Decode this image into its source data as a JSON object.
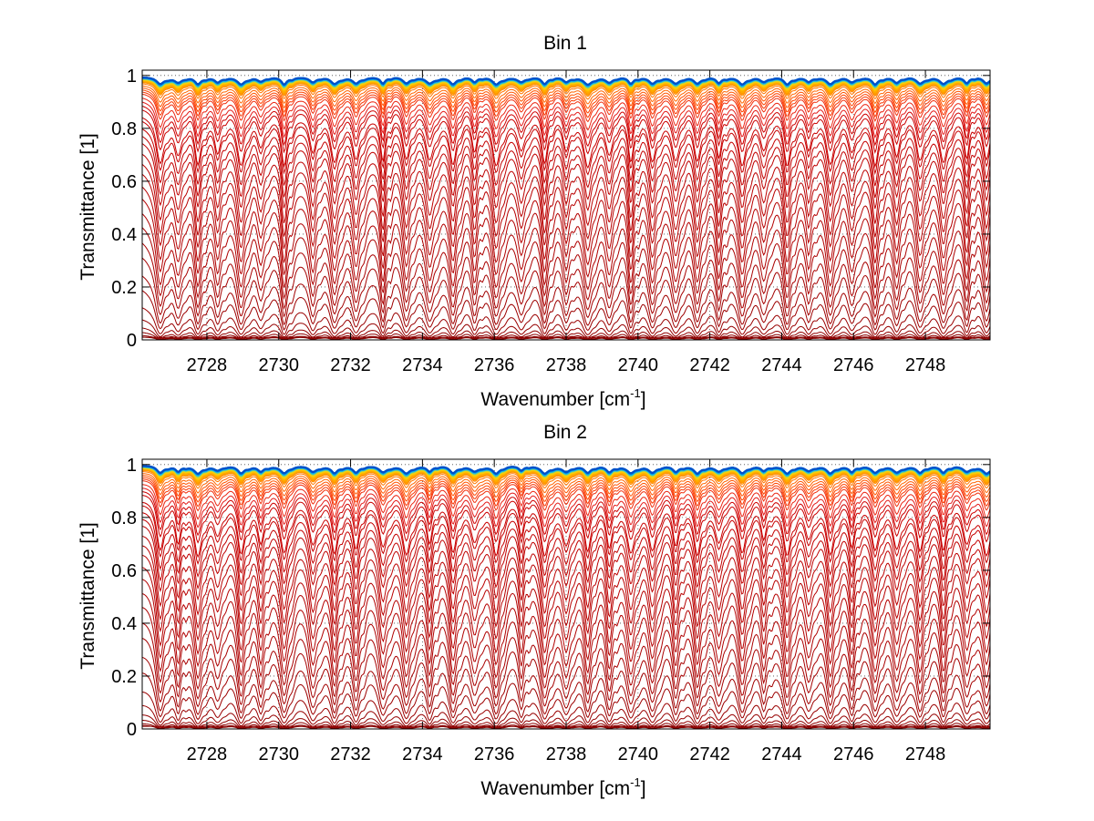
{
  "chart_data": [
    {
      "type": "line",
      "title": "Bin 1",
      "xlabel_main": "Wavenumber [cm",
      "xlabel_sup": "-1",
      "xlabel_end": "]",
      "ylabel": "Transmittance [1]",
      "xlim": [
        2726.2,
        2749.8
      ],
      "ylim": [
        0,
        1.02
      ],
      "xticks": [
        "2728",
        "2730",
        "2732",
        "2734",
        "2736",
        "2738",
        "2740",
        "2742",
        "2744",
        "2746",
        "2748"
      ],
      "yticks": [
        "0",
        "0.2",
        "0.4",
        "0.6",
        "0.8",
        "1"
      ],
      "grid": true,
      "series_count": 48,
      "baseline_transmittance": [
        0.0,
        0.01,
        0.02,
        0.03,
        0.05,
        0.08,
        0.13,
        0.2,
        0.29,
        0.36,
        0.44,
        0.5,
        0.56,
        0.61,
        0.66,
        0.7,
        0.74,
        0.77,
        0.8,
        0.83,
        0.85,
        0.87,
        0.89,
        0.9,
        0.92,
        0.93,
        0.94,
        0.95,
        0.96,
        0.965,
        0.97,
        0.975,
        0.98,
        0.985,
        0.988,
        0.99,
        0.992,
        0.994,
        0.995,
        0.996,
        0.997,
        0.998,
        0.998,
        0.999,
        0.999,
        1.0,
        1.0,
        1.0
      ],
      "absorption_line_positions": [
        2726.7,
        2727.2,
        2727.75,
        2728.3,
        2728.95,
        2729.5,
        2730.15,
        2730.95,
        2731.55,
        2732.15,
        2732.9,
        2733.55,
        2734.2,
        2734.85,
        2735.45,
        2736.05,
        2736.75,
        2737.4,
        2738.0,
        2738.6,
        2739.2,
        2739.8,
        2740.4,
        2741.05,
        2741.65,
        2742.25,
        2742.9,
        2743.5,
        2744.15,
        2744.75,
        2745.35,
        2745.95,
        2746.6,
        2747.2,
        2747.85,
        2748.5,
        2749.15,
        2749.7
      ],
      "colormap": [
        "#7f0000",
        "#b30000",
        "#e31a1c",
        "#ff4500",
        "#ff8c00",
        "#ffd700",
        "#9acd32",
        "#00bfff",
        "#0050c8"
      ]
    },
    {
      "type": "line",
      "title": "Bin 2",
      "xlabel_main": "Wavenumber [cm",
      "xlabel_sup": "-1",
      "xlabel_end": "]",
      "ylabel": "Transmittance [1]",
      "xlim": [
        2726.2,
        2749.8
      ],
      "ylim": [
        0,
        1.02
      ],
      "xticks": [
        "2728",
        "2730",
        "2732",
        "2734",
        "2736",
        "2738",
        "2740",
        "2742",
        "2744",
        "2746",
        "2748"
      ],
      "yticks": [
        "0",
        "0.2",
        "0.4",
        "0.6",
        "0.8",
        "1"
      ],
      "grid": true,
      "series_count": 48,
      "baseline_transmittance": [
        0.0,
        0.01,
        0.02,
        0.03,
        0.05,
        0.08,
        0.13,
        0.2,
        0.29,
        0.36,
        0.44,
        0.5,
        0.56,
        0.61,
        0.66,
        0.7,
        0.74,
        0.77,
        0.8,
        0.83,
        0.85,
        0.87,
        0.89,
        0.9,
        0.92,
        0.93,
        0.94,
        0.95,
        0.96,
        0.965,
        0.97,
        0.975,
        0.98,
        0.985,
        0.988,
        0.99,
        0.992,
        0.994,
        0.995,
        0.996,
        0.997,
        0.998,
        0.998,
        0.999,
        0.999,
        1.0,
        1.0,
        1.0
      ],
      "absorption_line_positions": [
        2726.7,
        2727.2,
        2727.75,
        2728.3,
        2728.95,
        2729.5,
        2730.15,
        2730.95,
        2731.55,
        2732.15,
        2732.9,
        2733.55,
        2734.2,
        2734.85,
        2735.45,
        2736.05,
        2736.75,
        2737.4,
        2738.0,
        2738.6,
        2739.2,
        2739.8,
        2740.4,
        2741.05,
        2741.65,
        2742.25,
        2742.9,
        2743.5,
        2744.15,
        2744.75,
        2745.35,
        2745.95,
        2746.6,
        2747.2,
        2747.85,
        2748.5,
        2749.15,
        2749.7
      ],
      "colormap": [
        "#7f0000",
        "#b30000",
        "#e31a1c",
        "#ff4500",
        "#ff8c00",
        "#ffd700",
        "#9acd32",
        "#00bfff",
        "#0050c8"
      ]
    }
  ]
}
